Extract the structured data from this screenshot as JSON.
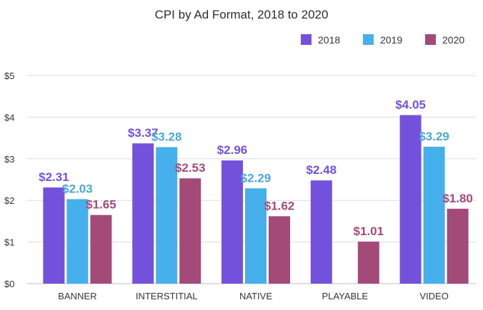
{
  "chart_data": {
    "type": "bar",
    "title": "CPI by Ad Format, 2018 to 2020",
    "xlabel": "",
    "ylabel": "",
    "categories": [
      "BANNER",
      "INTERSTITIAL",
      "NATIVE",
      "PLAYABLE",
      "VIDEO"
    ],
    "series": [
      {
        "name": "2018",
        "color": "#7451dd",
        "values": [
          2.31,
          3.37,
          2.96,
          2.48,
          4.05
        ],
        "labels": [
          "$2.31",
          "$3.37",
          "$2.96",
          "$2.48",
          "$4.05"
        ]
      },
      {
        "name": "2019",
        "color": "#45b0ec",
        "values": [
          2.03,
          3.28,
          2.29,
          null,
          3.29
        ],
        "labels": [
          "$2.03",
          "$3.28",
          "$2.29",
          "",
          "$3.29"
        ]
      },
      {
        "name": "2020",
        "color": "#a34a79",
        "values": [
          1.65,
          2.53,
          1.62,
          1.01,
          1.8
        ],
        "labels": [
          "$1.65",
          "$2.53",
          "$1.62",
          "$1.01",
          "$1.80"
        ]
      }
    ],
    "ylim": [
      0,
      5
    ],
    "yticks": [
      0,
      1,
      2,
      3,
      4,
      5
    ],
    "ytick_labels": [
      "$0",
      "$1",
      "$2",
      "$3",
      "$4",
      "$5"
    ],
    "grid": true,
    "legend_position": "top-right",
    "label_colors": [
      "#7451dd",
      "#4aa8d8",
      "#a34a79"
    ]
  }
}
